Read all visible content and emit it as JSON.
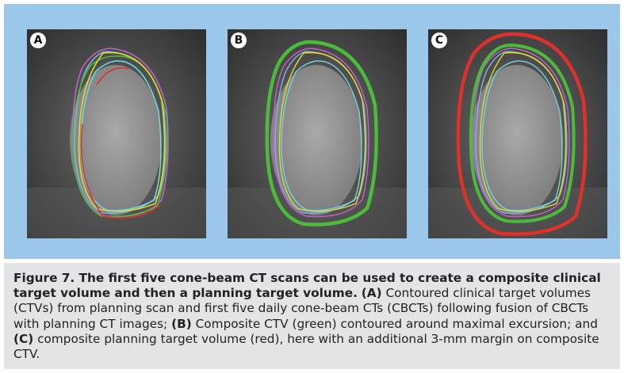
{
  "panels": [
    {
      "label": "A"
    },
    {
      "label": "B"
    },
    {
      "label": "C"
    }
  ],
  "contour_colors": {
    "green": "#4cbb3c",
    "red": "#e0302a",
    "yellow": "#e6d92a",
    "blue": "#7fb2e8",
    "magenta": "#c462c8",
    "cyan": "#6fd7dd"
  },
  "caption": {
    "heading": "Figure 7. The first five cone-beam CT scans can be used to create a composite clinical target volume and then a planning target volume.",
    "a_label": "(A)",
    "a_text": "Contoured clinical target volumes (CTVs) from planning scan and first five daily cone-beam CTs (CBCTs) following fusion of CBCTs with planning CT images;",
    "b_label": "(B)",
    "b_text": "Composite CTV (green) contoured around maximal excursion; and",
    "c_label": "(C)",
    "c_text": "composite planning target volume (red), here with an additional 3-mm margin on composite CTV."
  }
}
